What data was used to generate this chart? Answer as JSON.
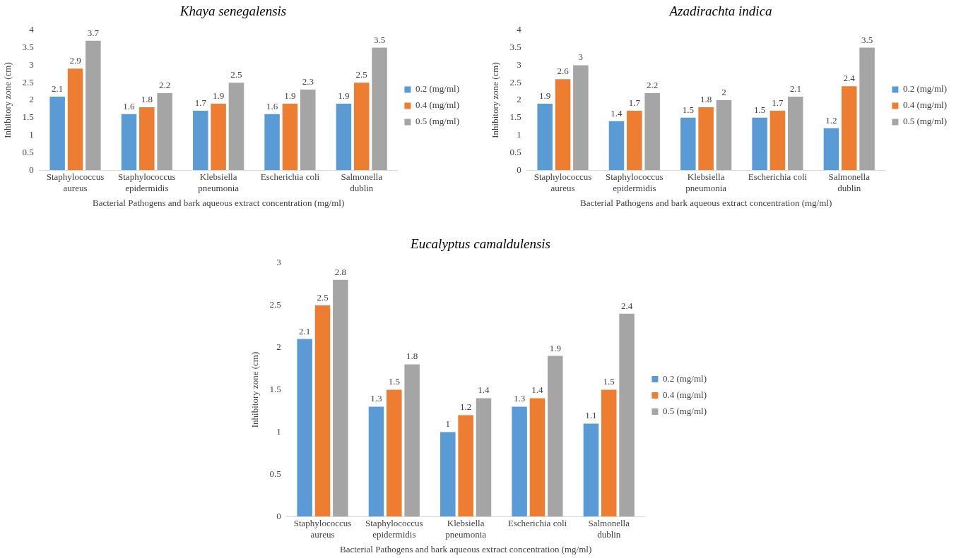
{
  "chart_data": [
    {
      "type": "bar",
      "title": "Khaya senegalensis",
      "xlabel": "Bacterial Pathogens and bark aqueous extract concentration (mg/ml)",
      "ylabel": "Inhibitory zone (cm)",
      "categories": [
        "Staphylococcus aureus",
        "Staphylococcus epidermidis",
        "Klebsiella pneumonia",
        "Escherichia coli",
        "Salmonella dublin"
      ],
      "series": [
        {
          "name": "0.2 (mg/ml)",
          "color": "#5b9bd5",
          "values": [
            2.1,
            1.6,
            1.7,
            1.6,
            1.9
          ]
        },
        {
          "name": "0.4 (mg/ml)",
          "color": "#ed7d31",
          "values": [
            2.9,
            1.8,
            1.9,
            1.9,
            2.5
          ]
        },
        {
          "name": "0.5 (mg/ml)",
          "color": "#a5a5a5",
          "values": [
            3.7,
            2.2,
            2.5,
            2.3,
            3.5
          ]
        }
      ],
      "ylim": [
        0,
        4
      ],
      "yticks": [
        0,
        0.5,
        1,
        1.5,
        2,
        2.5,
        3,
        3.5,
        4
      ],
      "data_labels": true,
      "legend": "right",
      "grid": false
    },
    {
      "type": "bar",
      "title": "Azadirachta indica",
      "xlabel": "Bacterial Pathogens and bark aqueous extract concentration (mg/ml)",
      "ylabel": "Inhibitory zone (cm)",
      "categories": [
        "Staphylococcus aureus",
        "Staphylococcus epidermidis",
        "Klebsiella pneumonia",
        "Escherichia coli",
        "Salmonella dublin"
      ],
      "series": [
        {
          "name": "0.2 (mg/ml)",
          "color": "#5b9bd5",
          "values": [
            1.9,
            1.4,
            1.5,
            1.5,
            1.2
          ]
        },
        {
          "name": "0.4 (mg/ml)",
          "color": "#ed7d31",
          "values": [
            2.6,
            1.7,
            1.8,
            1.7,
            2.4
          ]
        },
        {
          "name": "0.5 (mg/ml)",
          "color": "#a5a5a5",
          "values": [
            3,
            2.2,
            2,
            2.1,
            3.5
          ]
        }
      ],
      "ylim": [
        0,
        4
      ],
      "yticks": [
        0,
        0.5,
        1,
        1.5,
        2,
        2.5,
        3,
        3.5,
        4
      ],
      "data_labels": true,
      "legend": "right",
      "grid": false
    },
    {
      "type": "bar",
      "title": "Eucalyptus camaldulensis",
      "xlabel": "Bacterial Pathogens and bark aqueous extract concentration (mg/ml)",
      "ylabel": "Inhibitory zone (cm)",
      "categories": [
        "Staphylococcus aureus",
        "Staphylococcus epidermidis",
        "Klebsiella pneumonia",
        "Escherichia coli",
        "Salmonella dublin"
      ],
      "series": [
        {
          "name": "0.2 (mg/ml)",
          "color": "#5b9bd5",
          "values": [
            2.1,
            1.3,
            1,
            1.3,
            1.1
          ]
        },
        {
          "name": "0.4 (mg/ml)",
          "color": "#ed7d31",
          "values": [
            2.5,
            1.5,
            1.2,
            1.4,
            1.5
          ]
        },
        {
          "name": "0.5 (mg/ml)",
          "color": "#a5a5a5",
          "values": [
            2.8,
            1.8,
            1.4,
            1.9,
            2.4
          ]
        }
      ],
      "ylim": [
        0,
        3
      ],
      "yticks": [
        0,
        0.5,
        1,
        1.5,
        2,
        2.5,
        3
      ],
      "data_labels": true,
      "legend": "right",
      "grid": false
    }
  ]
}
